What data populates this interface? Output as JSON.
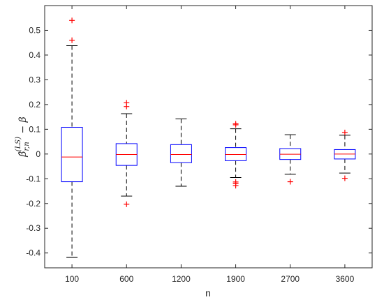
{
  "chart_data": {
    "type": "boxplot",
    "xlabel": "n",
    "ylabel": "β̂_{r,n}^{(LS)} − β",
    "ylabel_parts": {
      "base": "β̂",
      "sup": "(LS)",
      "sub": "r,n",
      "rest": " − β"
    },
    "categories": [
      "100",
      "600",
      "1200",
      "1900",
      "2700",
      "3600"
    ],
    "ylim": [
      -0.46,
      0.6
    ],
    "yticks": [
      -0.4,
      -0.3,
      -0.2,
      -0.1,
      0,
      0.1,
      0.2,
      0.3,
      0.4,
      0.5
    ],
    "ytick_labels": [
      "-0.4",
      "-0.3",
      "-0.2",
      "-0.1",
      "0",
      "0.1",
      "0.2",
      "0.3",
      "0.4",
      "0.5"
    ],
    "grid": false,
    "colors": {
      "box": "#0000ff",
      "median": "#ff0000",
      "whisker": "#000000",
      "outlier": "#ff0000",
      "axis": "#262626"
    },
    "boxes": [
      {
        "label": "100",
        "q1": -0.112,
        "median": -0.012,
        "q3": 0.108,
        "whisker_low": -0.418,
        "whisker_high": 0.438,
        "outliers": [
          0.46,
          0.54
        ]
      },
      {
        "label": "600",
        "q1": -0.046,
        "median": -0.002,
        "q3": 0.042,
        "whisker_low": -0.17,
        "whisker_high": 0.163,
        "outliers": [
          0.192,
          0.207,
          -0.203
        ]
      },
      {
        "label": "1200",
        "q1": -0.035,
        "median": -0.002,
        "q3": 0.038,
        "whisker_low": -0.13,
        "whisker_high": 0.142,
        "outliers": []
      },
      {
        "label": "1900",
        "q1": -0.027,
        "median": -0.002,
        "q3": 0.026,
        "whisker_low": -0.095,
        "whisker_high": 0.102,
        "outliers": [
          0.118,
          0.122,
          -0.113,
          -0.12,
          -0.128
        ]
      },
      {
        "label": "2700",
        "q1": -0.022,
        "median": -0.001,
        "q3": 0.022,
        "whisker_low": -0.082,
        "whisker_high": 0.078,
        "outliers": [
          -0.112
        ]
      },
      {
        "label": "3600",
        "q1": -0.02,
        "median": 0.0,
        "q3": 0.018,
        "whisker_low": -0.077,
        "whisker_high": 0.076,
        "outliers": [
          0.087,
          -0.098
        ]
      }
    ]
  }
}
